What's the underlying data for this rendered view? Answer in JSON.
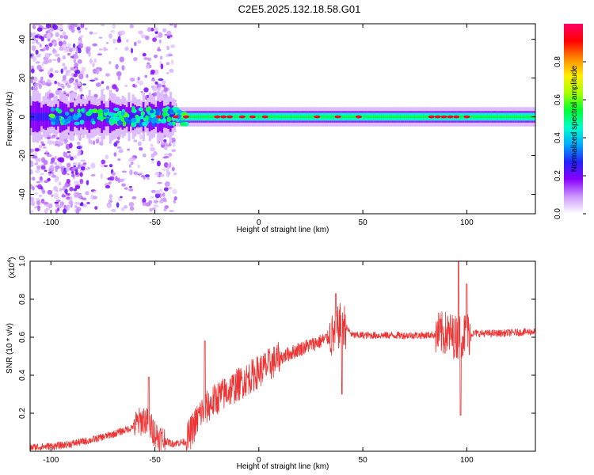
{
  "title": "C2E5.2025.132.18.58.G01",
  "chart_data": [
    {
      "type": "heatmap",
      "xlabel": "Height of straight line (km)",
      "ylabel": "Frequency (Hz)",
      "xlim": [
        -110,
        133
      ],
      "ylim": [
        -50,
        48
      ],
      "x_ticks": [
        -100,
        -50,
        0,
        50,
        100
      ],
      "y_ticks": [
        -40,
        -20,
        0,
        20,
        40
      ],
      "colorbar": {
        "label": "Normalized spectral amplitude",
        "range": [
          0,
          1
        ],
        "ticks": [
          0.0,
          0.2,
          0.4,
          0.6,
          0.8
        ],
        "colors": [
          "#ffffff",
          "#cc99ff",
          "#8800ff",
          "#2222ff",
          "#00aaff",
          "#00ffcc",
          "#00ff33",
          "#aaff00",
          "#ffee00",
          "#ff8800",
          "#ff0000",
          "#ff0066"
        ]
      },
      "band": {
        "core_halfwidth_hz": 2,
        "outer_halfwidth_hz": 5,
        "hotspots_x_km": [
          -48,
          -40,
          -35,
          -20,
          -17,
          -14,
          -8,
          -3,
          3,
          28,
          38,
          48,
          83,
          86,
          89,
          92,
          95,
          100
        ]
      },
      "scatter_region_x_km": [
        -110,
        -40
      ],
      "grid": false
    },
    {
      "type": "line",
      "xlabel": "Height of straight line (km)",
      "ylabel": "SNR (10 * v/v)",
      "y_multiplier_label": "(x10",
      "y_multiplier_exp": "4",
      "y_multiplier_close": ")",
      "xlim": [
        -110,
        133
      ],
      "ylim": [
        0,
        1.0
      ],
      "x_ticks": [
        -100,
        -50,
        0,
        50,
        100
      ],
      "y_ticks": [
        0.2,
        0.4,
        0.6,
        0.8,
        1.0
      ],
      "series_color": "#ee3333",
      "trend": {
        "x": [
          -110,
          -95,
          -80,
          -70,
          -62,
          -55,
          -48,
          -42,
          -35,
          -28,
          -20,
          -10,
          0,
          10,
          20,
          30,
          36,
          40,
          45,
          60,
          80,
          90,
          95,
          100,
          105,
          115,
          133
        ],
        "y": [
          0.02,
          0.03,
          0.06,
          0.09,
          0.12,
          0.17,
          0.07,
          0.04,
          0.05,
          0.2,
          0.28,
          0.35,
          0.42,
          0.49,
          0.54,
          0.58,
          0.61,
          0.68,
          0.61,
          0.61,
          0.61,
          0.62,
          0.6,
          0.62,
          0.62,
          0.62,
          0.63
        ]
      },
      "spikes": [
        {
          "x": -53,
          "y": 0.39
        },
        {
          "x": -26,
          "y": 0.58
        },
        {
          "x": 37,
          "y": 0.83
        },
        {
          "x": 40,
          "y": 0.3
        },
        {
          "x": 96,
          "y": 1.0
        },
        {
          "x": 97,
          "y": 0.19
        },
        {
          "x": 100,
          "y": 0.88
        }
      ],
      "grid": false
    }
  ]
}
